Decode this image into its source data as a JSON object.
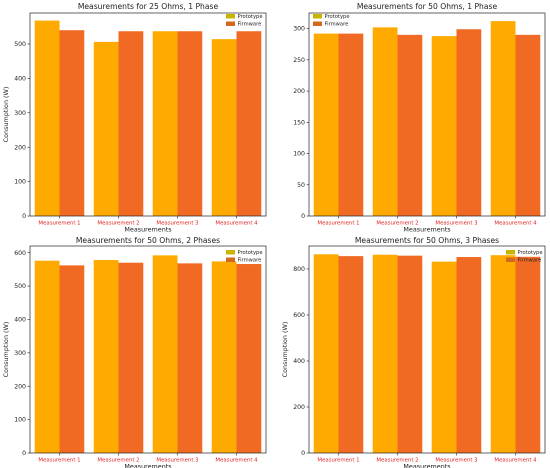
{
  "colors": {
    "prototype": "#FFAA00",
    "firmware": "#F06A24",
    "prototype_legend": "#C9B400",
    "firmware_legend": "#D2691E",
    "xtick_text": "#E02020"
  },
  "chart_data": [
    {
      "type": "bar",
      "title": "Measurements for 25 Ohms, 1 Phase",
      "xlabel": "Measurements",
      "ylabel": "Consumption (W)",
      "categories": [
        "Measurement 1",
        "Measurement 2",
        "Measurement 3",
        "Measurement 4"
      ],
      "series": [
        {
          "name": "Prototype",
          "values": [
            568,
            506,
            537,
            514
          ]
        },
        {
          "name": "Firmware",
          "values": [
            540,
            537,
            537,
            537
          ]
        }
      ],
      "ylim": [
        0,
        590
      ],
      "yticks": [
        0,
        100,
        200,
        300,
        400,
        500
      ],
      "legend": "top-right",
      "grid": false
    },
    {
      "type": "bar",
      "title": "Measurements for 50 Ohms, 1 Phase",
      "xlabel": "Measurements",
      "ylabel": "",
      "categories": [
        "Measurement 1",
        "Measurement 2",
        "Measurement 3",
        "Measurement 4"
      ],
      "series": [
        {
          "name": "Prototype",
          "values": [
            292,
            302,
            288,
            312
          ]
        },
        {
          "name": "Firmware",
          "values": [
            292,
            290,
            299,
            290
          ]
        }
      ],
      "ylim": [
        0,
        325
      ],
      "yticks": [
        0,
        50,
        100,
        150,
        200,
        250,
        300
      ],
      "legend": "top-left",
      "grid": false
    },
    {
      "type": "bar",
      "title": "Measurements for 50 Ohms, 2 Phases",
      "xlabel": "Measurements",
      "ylabel": "Consumption (W)",
      "categories": [
        "Measurement 1",
        "Measurement 2",
        "Measurement 3",
        "Measurement 4"
      ],
      "series": [
        {
          "name": "Prototype",
          "values": [
            576,
            578,
            592,
            574
          ]
        },
        {
          "name": "Firmware",
          "values": [
            562,
            570,
            568,
            566
          ]
        }
      ],
      "ylim": [
        0,
        620
      ],
      "yticks": [
        0,
        100,
        200,
        300,
        400,
        500,
        600
      ],
      "legend": "top-right",
      "grid": false
    },
    {
      "type": "bar",
      "title": "Measurements for 50 Ohms, 3 Phases",
      "xlabel": "Measurements",
      "ylabel": "Consumption (W)",
      "categories": [
        "Measurement 1",
        "Measurement 2",
        "Measurement 3",
        "Measurement 4"
      ],
      "series": [
        {
          "name": "Prototype",
          "values": [
            864,
            862,
            832,
            860
          ]
        },
        {
          "name": "Firmware",
          "values": [
            856,
            858,
            852,
            853
          ]
        }
      ],
      "ylim": [
        0,
        900
      ],
      "yticks": [
        0,
        200,
        400,
        600,
        800
      ],
      "legend": "top-right",
      "grid": false
    }
  ]
}
